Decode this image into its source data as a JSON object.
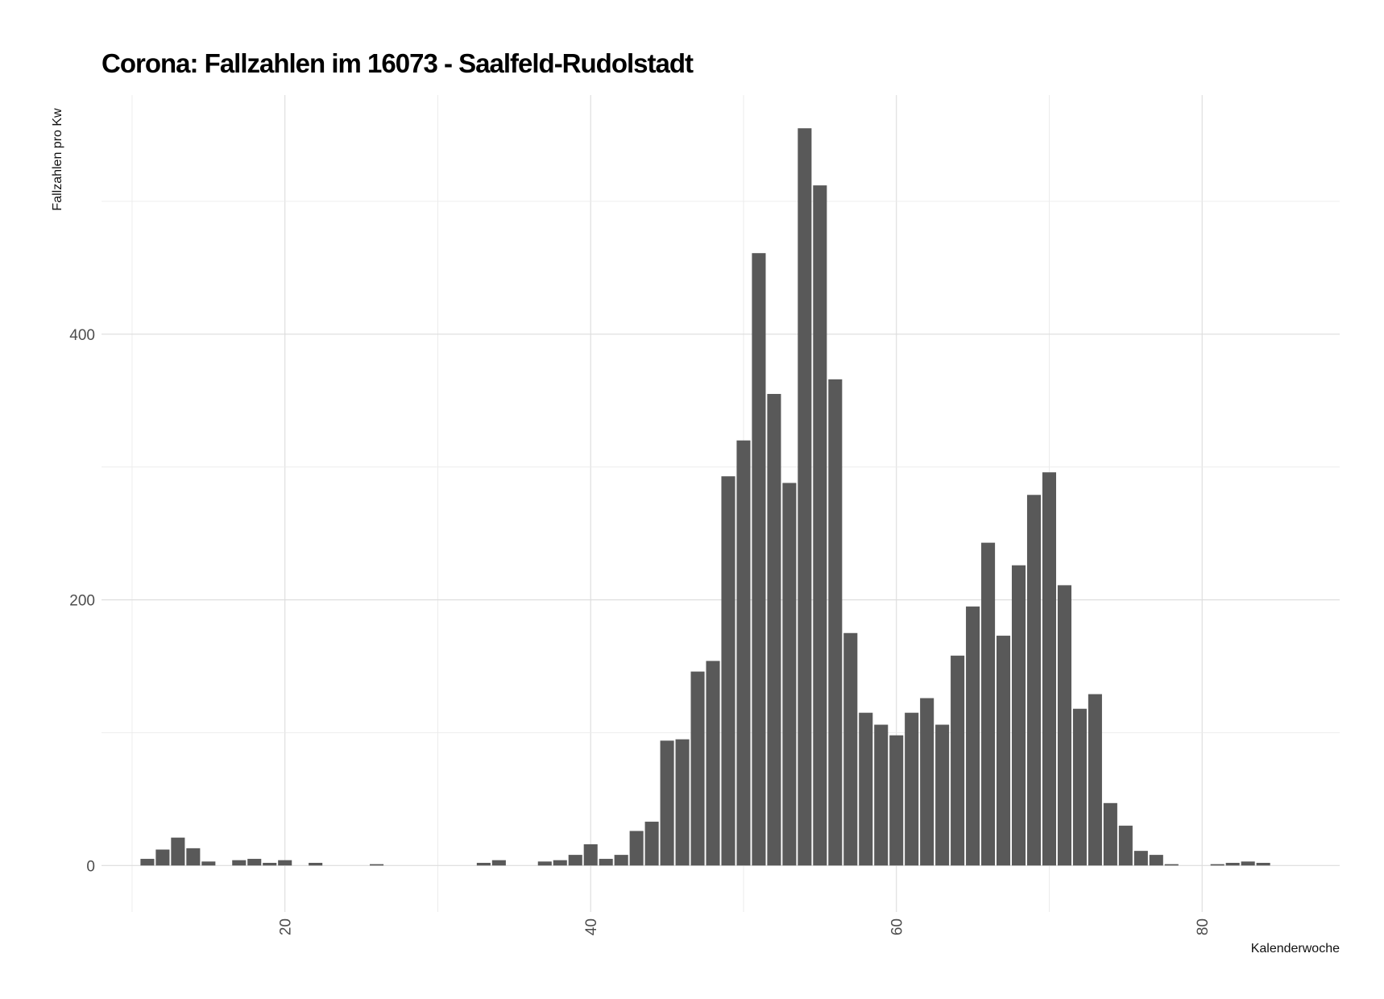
{
  "chart_data": {
    "type": "bar",
    "title": "Corona: Fallzahlen im 16073 - Saalfeld-Rudolstadt",
    "xlabel": "Kalenderwoche",
    "ylabel": "Fallzahlen pro Kw",
    "xlim": [
      8,
      89
    ],
    "ylim": [
      -35,
      580
    ],
    "xticks": [
      20,
      40,
      60,
      80
    ],
    "yticks": [
      0,
      200,
      400
    ],
    "grid": true,
    "bar_color": "#595959",
    "x": [
      11,
      12,
      13,
      14,
      15,
      17,
      18,
      19,
      20,
      22,
      26,
      33,
      34,
      37,
      38,
      39,
      40,
      41,
      42,
      43,
      44,
      45,
      46,
      47,
      48,
      49,
      50,
      51,
      52,
      53,
      54,
      55,
      56,
      57,
      58,
      59,
      60,
      61,
      62,
      63,
      64,
      65,
      66,
      67,
      68,
      69,
      70,
      71,
      72,
      73,
      74,
      75,
      76,
      77,
      78,
      81,
      82,
      83,
      84
    ],
    "values": [
      5,
      12,
      21,
      13,
      3,
      4,
      5,
      2,
      4,
      2,
      1,
      2,
      4,
      3,
      4,
      8,
      16,
      5,
      8,
      26,
      33,
      94,
      95,
      146,
      154,
      293,
      320,
      461,
      355,
      288,
      555,
      512,
      366,
      175,
      115,
      106,
      98,
      115,
      126,
      106,
      158,
      195,
      243,
      173,
      226,
      279,
      296,
      211,
      118,
      129,
      47,
      30,
      11,
      8,
      1,
      1,
      2,
      3,
      2
    ]
  }
}
